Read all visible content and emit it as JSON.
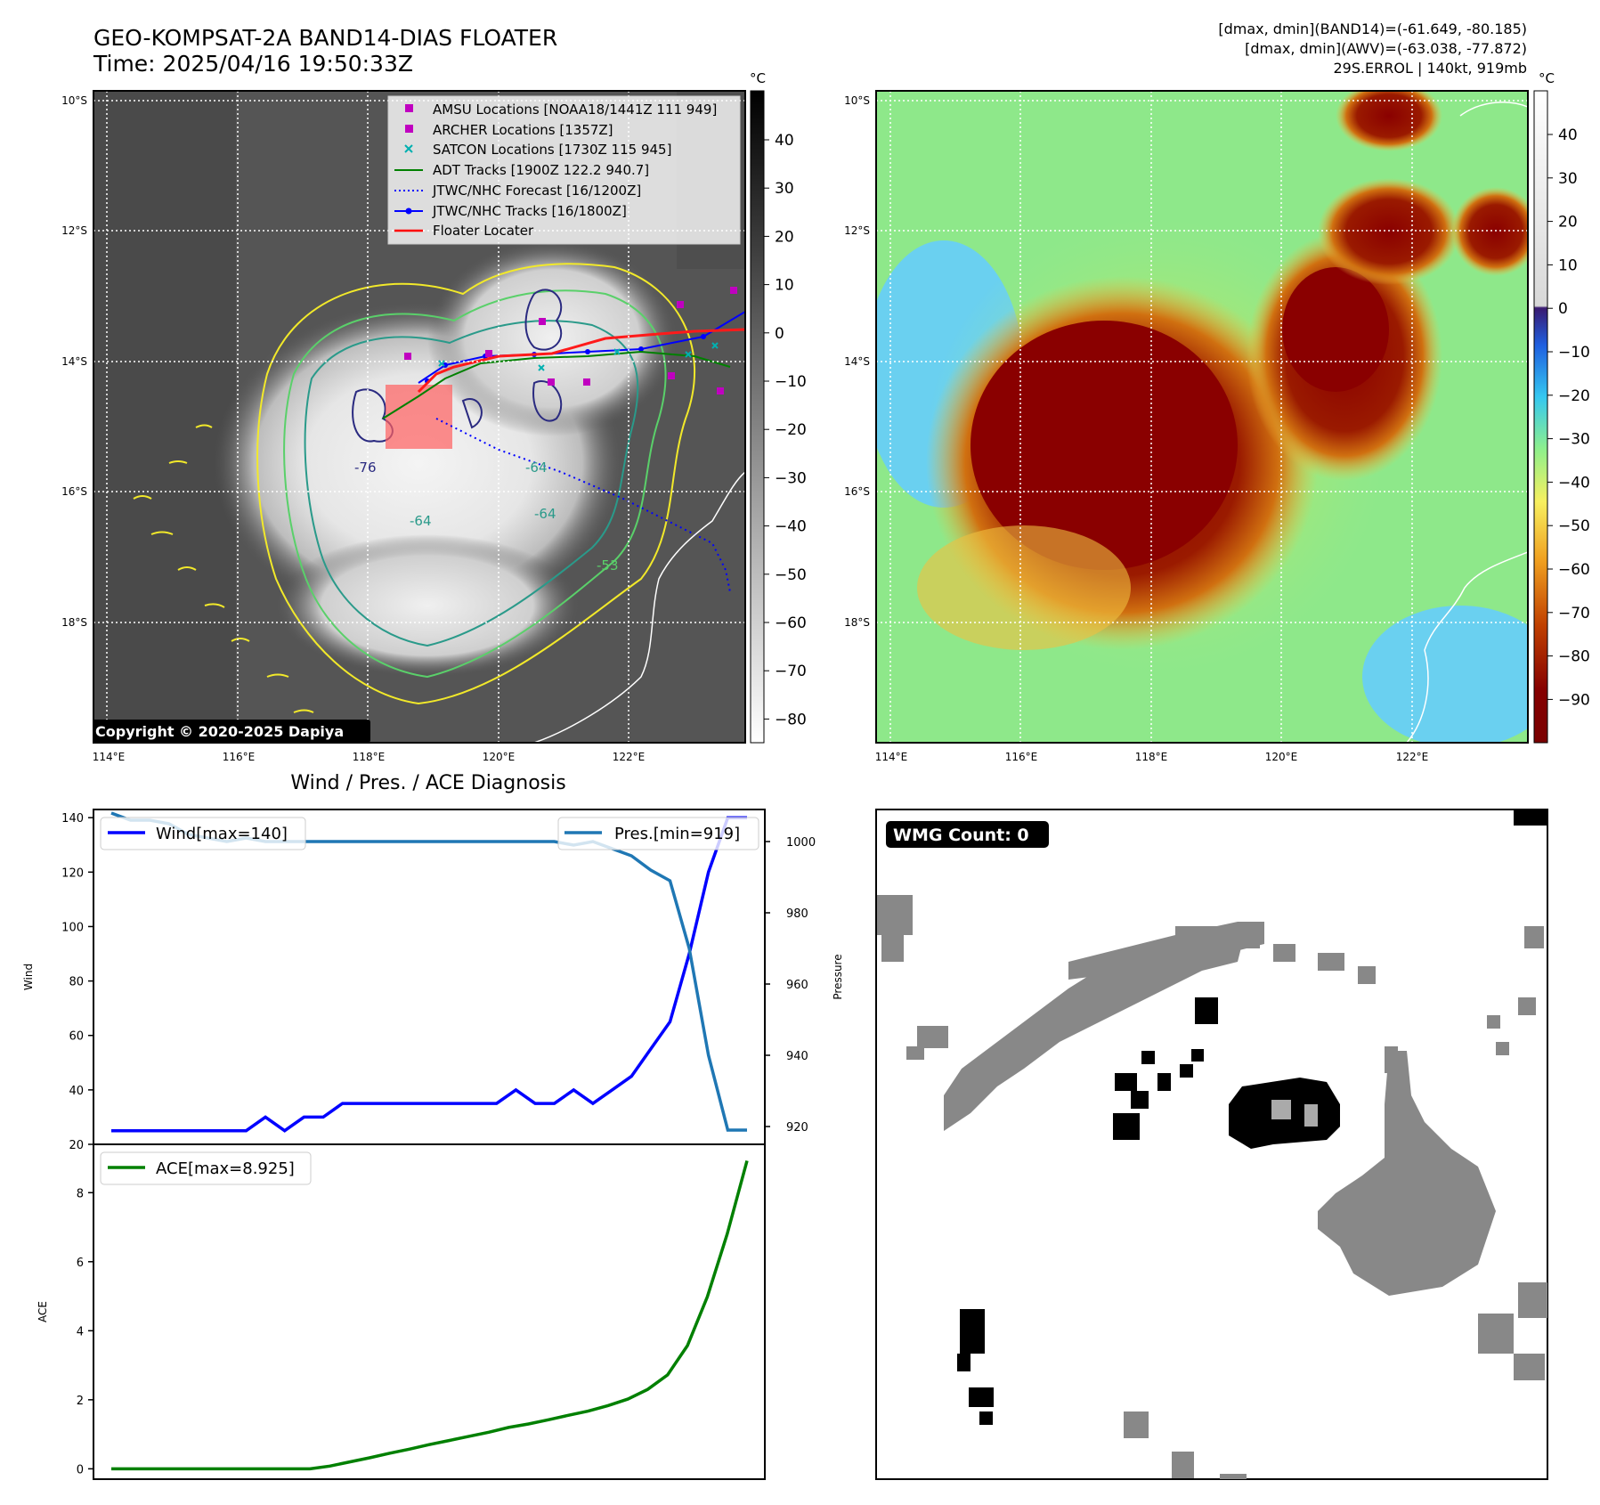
{
  "header": {
    "title_line1": "GEO-KOMPSAT-2A BAND14-DIAS FLOATER",
    "title_line2": "Time: 2025/04/16 19:50:33Z",
    "right_line1": "[dmax, dmin](BAND14)=(-61.649, -80.185)",
    "right_line2": "[dmax, dmin](AWV)=(-63.038, -77.872)",
    "right_line3": "29S.ERROL | 140kt, 919mb"
  },
  "map_axes": {
    "lat_labels": [
      "10°S",
      "12°S",
      "14°S",
      "16°S",
      "18°S"
    ],
    "lon_labels": [
      "114°E",
      "116°E",
      "118°E",
      "120°E",
      "122°E"
    ]
  },
  "left_map": {
    "copyright": "Copyright © 2020-2025 Dapiya",
    "contour_labels": [
      "-76",
      "-64",
      "-64",
      "-64",
      "-53"
    ],
    "legend": [
      {
        "label": "AMSU Locations [NOAA18/1441Z 111 949]",
        "color": "#c000c0",
        "marker": "square"
      },
      {
        "label": "ARCHER Locations [1357Z]",
        "color": "#c000c0",
        "marker": "square"
      },
      {
        "label": "SATCON Locations [1730Z 115 945]",
        "color": "#00b0b0",
        "marker": "x"
      },
      {
        "label": "ADT Tracks [1900Z 122.2 940.7]",
        "color": "#008000",
        "marker": "line"
      },
      {
        "label": "JTWC/NHC Forecast [16/1200Z]",
        "color": "#0000ff",
        "marker": "dotted"
      },
      {
        "label": "JTWC/NHC Tracks [16/1800Z]",
        "color": "#0000ff",
        "marker": "line-dot"
      },
      {
        "label": "Floater Locater",
        "color": "#ff0000",
        "marker": "line"
      }
    ]
  },
  "colorbar_gray": {
    "unit": "°C",
    "ticks": [
      "40",
      "30",
      "20",
      "10",
      "0",
      "−10",
      "−20",
      "−30",
      "−40",
      "−50",
      "−60",
      "−70",
      "−80"
    ]
  },
  "colorbar_color": {
    "unit": "°C",
    "ticks": [
      "40",
      "30",
      "20",
      "10",
      "0",
      "−10",
      "−20",
      "−30",
      "−40",
      "−50",
      "−60",
      "−70",
      "−80",
      "−90"
    ]
  },
  "chart_data": [
    {
      "type": "line",
      "title": "Wind / Pres. / ACE Diagnosis",
      "ylabel": "Wind",
      "y2label": "Pressure",
      "ylim": [
        20,
        143
      ],
      "y2lim": [
        915,
        1009
      ],
      "yticks": [
        20,
        40,
        60,
        80,
        100,
        120,
        140
      ],
      "y2ticks": [
        920,
        940,
        960,
        980,
        1000
      ],
      "series": [
        {
          "name": "Wind[max=140]",
          "color": "#0000ff",
          "values": [
            25,
            25,
            25,
            25,
            25,
            25,
            25,
            25,
            30,
            25,
            30,
            30,
            35,
            35,
            35,
            35,
            35,
            35,
            35,
            35,
            35,
            40,
            35,
            35,
            40,
            35,
            40,
            45,
            55,
            65,
            90,
            120,
            140,
            140
          ]
        },
        {
          "name": "Pres.[min=919]",
          "color": "#1f77b4",
          "values": [
            1008,
            1006,
            1006,
            1005,
            1002,
            1001,
            1000,
            1001,
            1000,
            1000,
            1000,
            1000,
            1000,
            1000,
            1000,
            1000,
            1000,
            1000,
            1000,
            1000,
            1000,
            1000,
            1000,
            1000,
            999,
            1000,
            998,
            996,
            992,
            989,
            970,
            940,
            919,
            919
          ]
        }
      ]
    },
    {
      "type": "line",
      "ylabel": "ACE",
      "ylim": [
        -0.3,
        9.4
      ],
      "yticks": [
        0,
        2,
        4,
        6,
        8
      ],
      "series": [
        {
          "name": "ACE[max=8.925]",
          "color": "#008000",
          "values": [
            0,
            0,
            0,
            0,
            0,
            0,
            0,
            0,
            0,
            0,
            0,
            0.08,
            0.2,
            0.32,
            0.45,
            0.57,
            0.7,
            0.82,
            0.94,
            1.06,
            1.2,
            1.3,
            1.42,
            1.55,
            1.67,
            1.83,
            2.02,
            2.3,
            2.72,
            3.57,
            4.98,
            6.8,
            8.925
          ]
        }
      ]
    }
  ],
  "wmg": {
    "label": "WMG Count: 0"
  }
}
